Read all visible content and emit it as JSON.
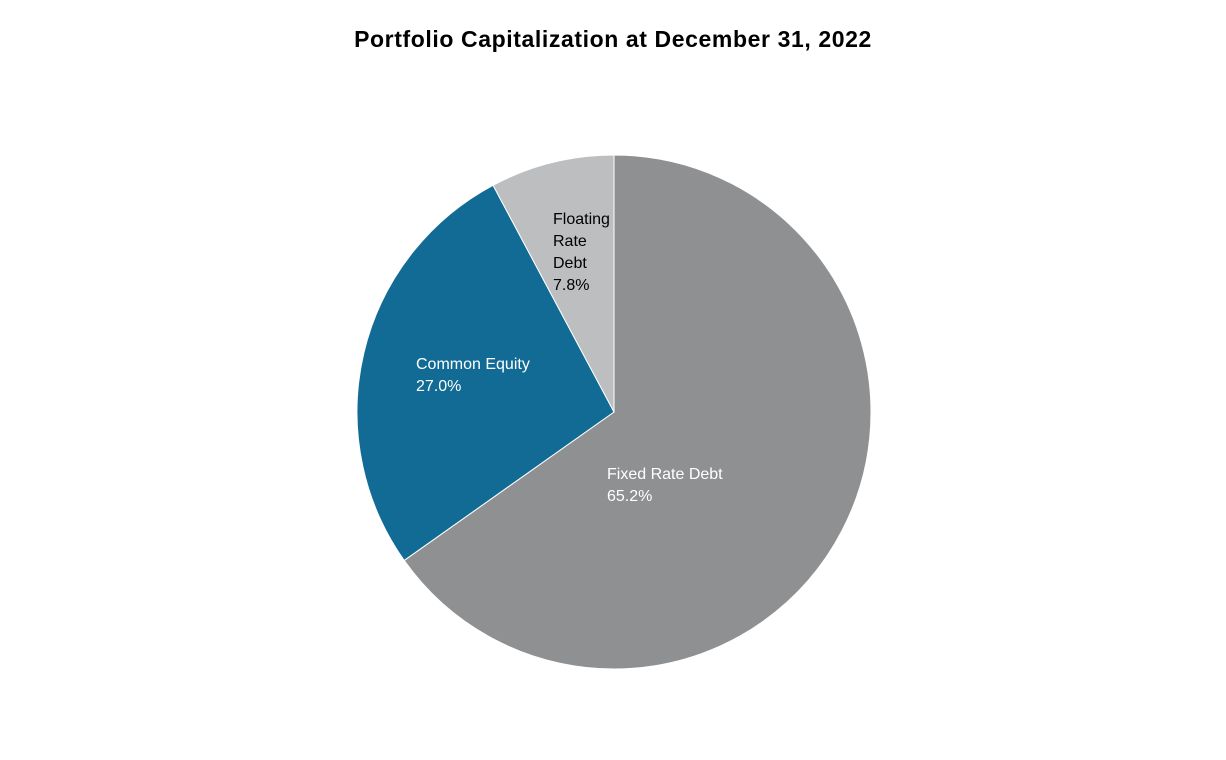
{
  "chart_data": {
    "type": "pie",
    "title": "Portfolio Capitalization at December 31, 2022",
    "slices": [
      {
        "name": "Fixed Rate Debt",
        "value": 65.2,
        "label_lines": [
          "Fixed Rate Debt",
          "65.2%"
        ],
        "color": "#8f9092",
        "label_color": "#ffffff"
      },
      {
        "name": "Common Equity",
        "value": 27.0,
        "label_lines": [
          "Common Equity",
          "27.0%"
        ],
        "color": "#126b94",
        "label_color": "#ffffff"
      },
      {
        "name": "Floating Rate Debt",
        "value": 7.8,
        "label_lines": [
          "Floating",
          "Rate",
          "Debt",
          "7.8%"
        ],
        "color": "#bdbec0",
        "label_color": "#000000"
      }
    ],
    "start_angle": "12 o'clock",
    "direction": "clockwise",
    "legend": "none"
  }
}
